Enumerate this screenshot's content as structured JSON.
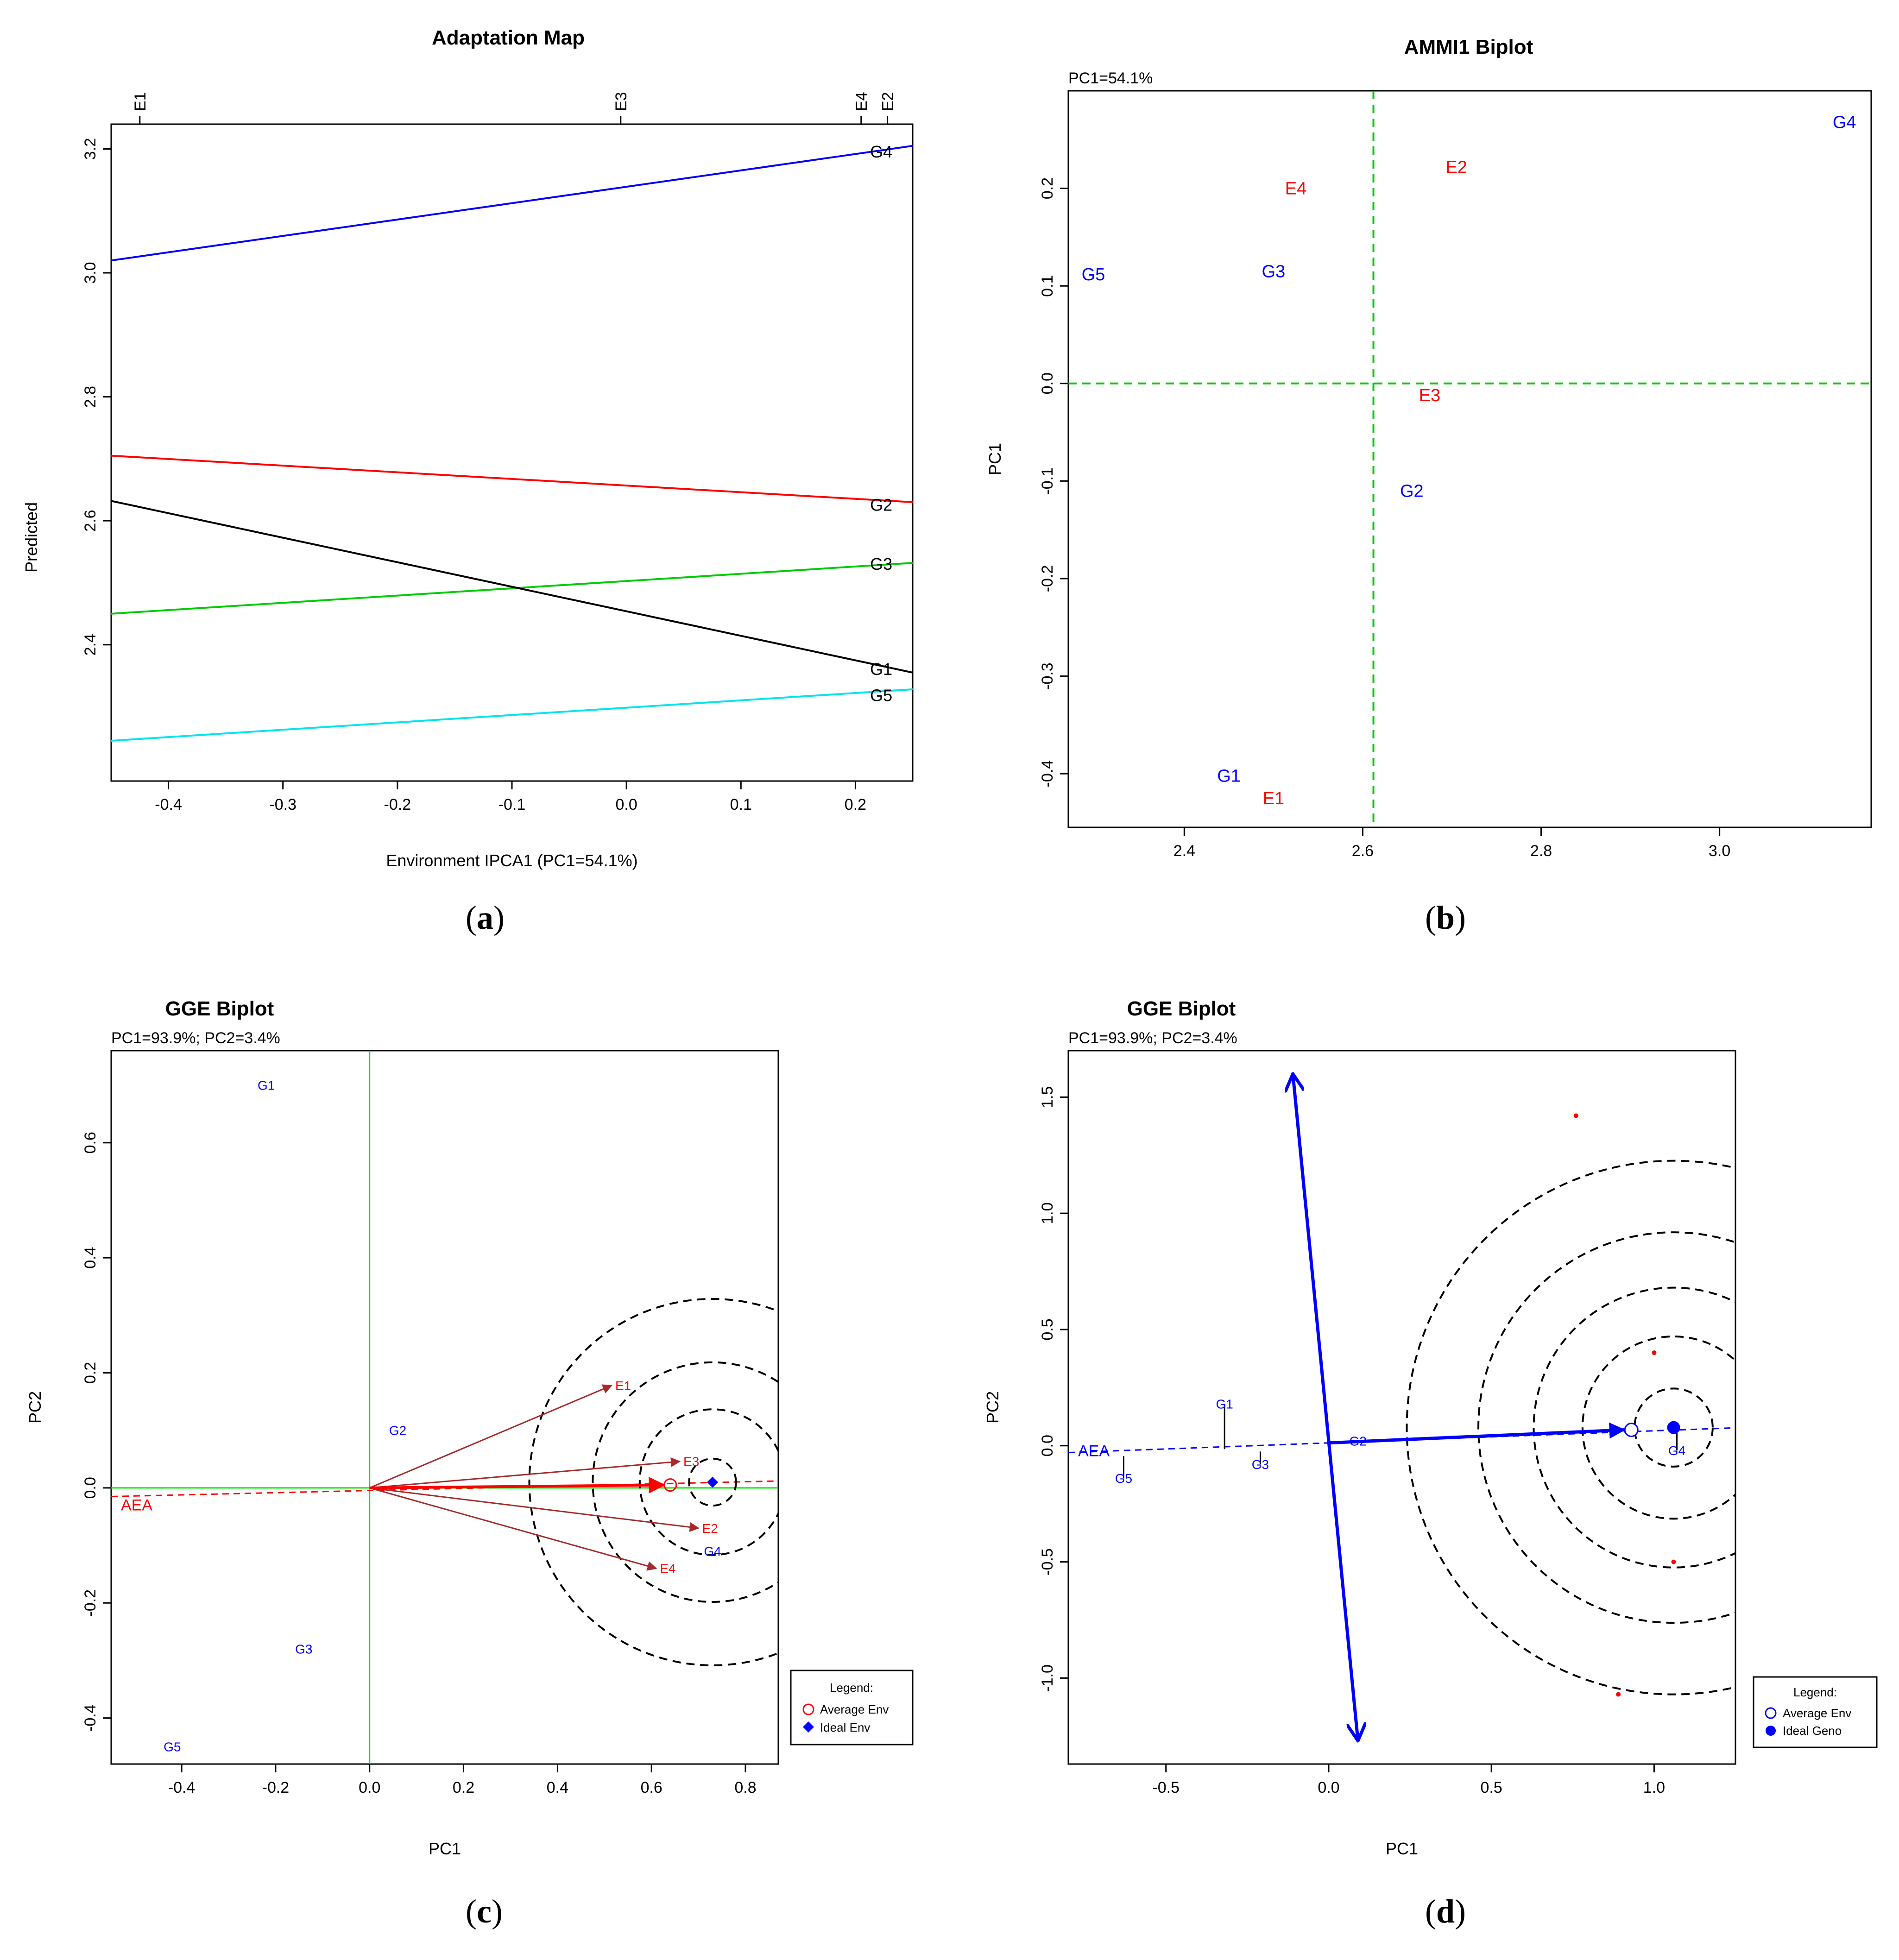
{
  "panels": {
    "a": {
      "caption_open": "(",
      "caption_letter": "a",
      "caption_close": ")"
    },
    "b": {
      "caption_open": "(",
      "caption_letter": "b",
      "caption_close": ")"
    },
    "c": {
      "caption_open": "(",
      "caption_letter": "c",
      "caption_close": ")"
    },
    "d": {
      "caption_open": "(",
      "caption_letter": "d",
      "caption_close": ")"
    }
  },
  "chart_data": [
    {
      "id": "a",
      "type": "line",
      "title": "Adaptation Map",
      "xlabel": "Environment IPCA1 (PC1=54.1%)",
      "ylabel": "Predicted",
      "xlim": [
        -0.45,
        0.25
      ],
      "ylim": [
        2.18,
        3.24
      ],
      "xticks": [
        -0.4,
        -0.3,
        -0.2,
        -0.1,
        0.0,
        0.1,
        0.2
      ],
      "xtick_labels": [
        "-0.4",
        "-0.3",
        "-0.2",
        "-0.1",
        "0.0",
        "0.1",
        "0.2"
      ],
      "yticks": [
        2.4,
        2.6,
        2.8,
        3.0,
        3.2
      ],
      "ytick_labels": [
        "2.4",
        "2.6",
        "2.8",
        "3.0",
        "3.2"
      ],
      "top_axis": [
        {
          "label": "E1",
          "x": -0.425
        },
        {
          "label": "E3",
          "x": -0.005
        },
        {
          "label": "E4",
          "x": 0.205
        },
        {
          "label": "E2",
          "x": 0.228
        }
      ],
      "series": [
        {
          "name": "G4",
          "color": "#0000ff",
          "x": [
            -0.45,
            0.25
          ],
          "y": [
            3.02,
            3.205
          ],
          "label_x": 0.212,
          "label_y": 3.195
        },
        {
          "name": "G2",
          "color": "#ff0000",
          "x": [
            -0.45,
            0.25
          ],
          "y": [
            2.705,
            2.63
          ],
          "label_x": 0.212,
          "label_y": 2.625
        },
        {
          "name": "G3",
          "color": "#00cd00",
          "x": [
            -0.45,
            0.25
          ],
          "y": [
            2.45,
            2.532
          ],
          "label_x": 0.212,
          "label_y": 2.53
        },
        {
          "name": "G1",
          "color": "#000000",
          "x": [
            -0.45,
            0.25
          ],
          "y": [
            2.632,
            2.355
          ],
          "label_x": 0.212,
          "label_y": 2.36
        },
        {
          "name": "G5",
          "color": "#00e5ee",
          "x": [
            -0.45,
            0.25
          ],
          "y": [
            2.245,
            2.328
          ],
          "label_x": 0.212,
          "label_y": 2.318
        }
      ]
    },
    {
      "id": "b",
      "type": "scatter",
      "title": "AMMI1 Biplot",
      "subtitle": "PC1=54.1%",
      "xlabel": "",
      "ylabel": "PC1",
      "xlim": [
        2.27,
        3.17
      ],
      "ylim": [
        -0.455,
        0.3
      ],
      "xticks": [
        2.4,
        2.6,
        2.8,
        3.0
      ],
      "xtick_labels": [
        "2.4",
        "2.6",
        "2.8",
        "3.0"
      ],
      "yticks": [
        -0.4,
        -0.3,
        -0.2,
        -0.1,
        0.0,
        0.1,
        0.2
      ],
      "ytick_labels": [
        "-0.4",
        "-0.3",
        "-0.2",
        "-0.1",
        "0.0",
        "0.1",
        "0.2"
      ],
      "reference_lines": {
        "x": 2.612,
        "y": 0.0,
        "color": "#00cd00"
      },
      "points": [
        {
          "label": "G4",
          "x": 3.14,
          "y": 0.268,
          "color": "#0000ff"
        },
        {
          "label": "E2",
          "x": 2.705,
          "y": 0.222,
          "color": "#ff0000"
        },
        {
          "label": "E4",
          "x": 2.525,
          "y": 0.2,
          "color": "#ff0000"
        },
        {
          "label": "G5",
          "x": 2.298,
          "y": 0.112,
          "color": "#0000ff"
        },
        {
          "label": "G3",
          "x": 2.5,
          "y": 0.115,
          "color": "#0000ff"
        },
        {
          "label": "E3",
          "x": 2.675,
          "y": -0.012,
          "color": "#ff0000"
        },
        {
          "label": "G2",
          "x": 2.655,
          "y": -0.11,
          "color": "#0000ff"
        },
        {
          "label": "G1",
          "x": 2.45,
          "y": -0.402,
          "color": "#0000ff"
        },
        {
          "label": "E1",
          "x": 2.5,
          "y": -0.425,
          "color": "#ff0000"
        }
      ]
    },
    {
      "id": "c",
      "type": "scatter",
      "title": "GGE Biplot",
      "subtitle": "PC1=93.9%; PC2=3.4%",
      "xlabel": "PC1",
      "ylabel": "PC2",
      "xlim": [
        -0.55,
        0.87
      ],
      "ylim": [
        -0.48,
        0.76
      ],
      "xticks": [
        -0.4,
        -0.2,
        0.0,
        0.2,
        0.4,
        0.6,
        0.8
      ],
      "xtick_labels": [
        "-0.4",
        "-0.2",
        "0.0",
        "0.2",
        "0.4",
        "0.6",
        "0.8"
      ],
      "yticks": [
        -0.4,
        -0.2,
        0.0,
        0.2,
        0.4,
        0.6
      ],
      "ytick_labels": [
        "-0.4",
        "-0.2",
        "0.0",
        "0.2",
        "0.4",
        "0.6"
      ],
      "axis_label_aea": "AEA",
      "origin_lines_color": "#00ee00",
      "ideal": {
        "x": 0.73,
        "y": 0.01
      },
      "average": {
        "x": 0.64,
        "y": 0.005
      },
      "circle_radii": [
        0.05,
        0.155,
        0.255,
        0.39
      ],
      "env_vectors": [
        {
          "label": "E1",
          "x": 0.515,
          "y": 0.178
        },
        {
          "label": "E3",
          "x": 0.66,
          "y": 0.046
        },
        {
          "label": "E2",
          "x": 0.7,
          "y": -0.07
        },
        {
          "label": "E4",
          "x": 0.61,
          "y": -0.14
        }
      ],
      "genotypes": [
        {
          "label": "G1",
          "x": -0.22,
          "y": 0.7
        },
        {
          "label": "G2",
          "x": 0.06,
          "y": 0.1
        },
        {
          "label": "G4",
          "x": 0.73,
          "y": -0.11
        },
        {
          "label": "G3",
          "x": -0.14,
          "y": -0.28
        },
        {
          "label": "G5",
          "x": -0.42,
          "y": -0.45
        }
      ],
      "legend": {
        "title": "Legend:",
        "items": [
          "Average Env",
          "Ideal Env"
        ]
      }
    },
    {
      "id": "d",
      "type": "scatter",
      "title": "GGE Biplot",
      "subtitle": "PC1=93.9%; PC2=3.4%",
      "xlabel": "PC1",
      "ylabel": "PC2",
      "xlim": [
        -0.8,
        1.25
      ],
      "ylim": [
        -1.37,
        1.7
      ],
      "xticks": [
        -0.5,
        0.0,
        0.5,
        1.0
      ],
      "xtick_labels": [
        "-0.5",
        "0.0",
        "0.5",
        "1.0"
      ],
      "yticks": [
        -1.0,
        -0.5,
        0.0,
        0.5,
        1.0,
        1.5
      ],
      "ytick_labels": [
        "-1.0",
        "-0.5",
        "0.0",
        "0.5",
        "1.0",
        "1.5"
      ],
      "axis_label_aea": "AEA",
      "ideal": {
        "x": 1.06,
        "y": 0.078
      },
      "average": {
        "x": 0.93,
        "y": 0.068
      },
      "circle_radii": [
        0.12,
        0.28,
        0.43,
        0.6,
        0.82
      ],
      "env_points": [
        {
          "x": 0.76,
          "y": 1.42
        },
        {
          "x": 1.0,
          "y": 0.4
        },
        {
          "x": 1.06,
          "y": -0.5
        },
        {
          "x": 0.89,
          "y": -1.07
        }
      ],
      "genotypes": [
        {
          "label": "G1",
          "x": -0.32,
          "y": 0.18,
          "proj_y": -0.015
        },
        {
          "label": "G2",
          "x": 0.09,
          "y": 0.02,
          "proj_y": 0.02
        },
        {
          "label": "G3",
          "x": -0.21,
          "y": -0.08,
          "proj_y": -0.025
        },
        {
          "label": "G4",
          "x": 1.07,
          "y": -0.02,
          "proj_y": 0.078
        },
        {
          "label": "G5",
          "x": -0.63,
          "y": -0.14,
          "proj_y": -0.045
        }
      ],
      "stability_arrow": {
        "from": {
          "x": -0.11,
          "y": 1.6
        },
        "to": {
          "x": 0.09,
          "y": -1.27
        }
      },
      "legend": {
        "title": "Legend:",
        "items": [
          "Average Env",
          "Ideal Geno"
        ]
      }
    }
  ]
}
